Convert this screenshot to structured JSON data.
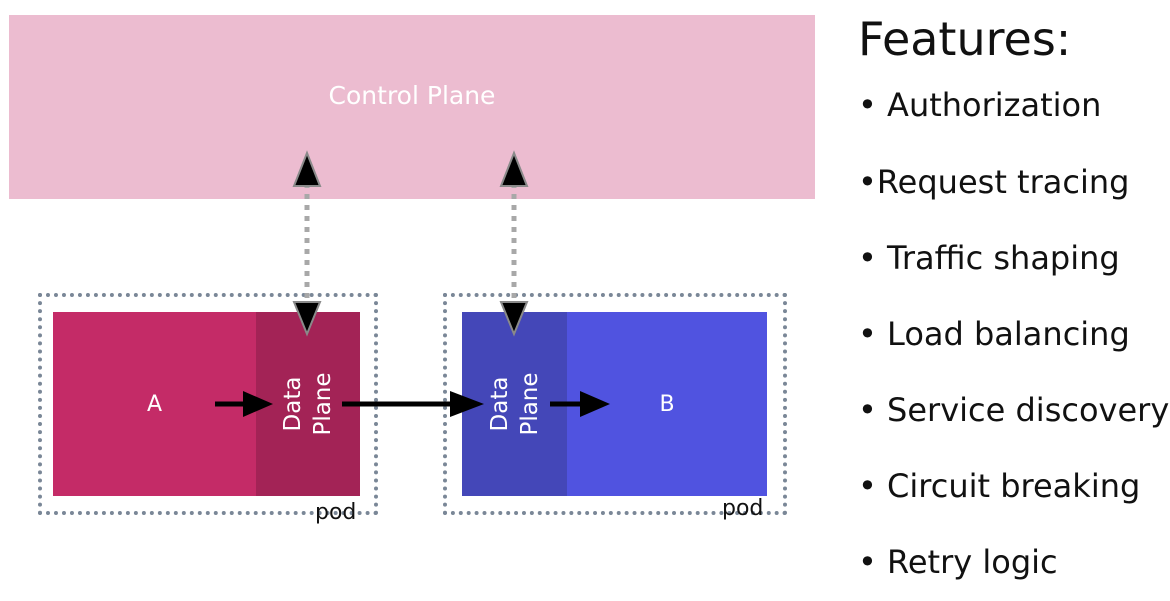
{
  "diagram": {
    "control_plane": {
      "label": "Control Plane"
    },
    "pods": [
      {
        "service_label": "A",
        "proxy_line1": "Data",
        "proxy_line2": "Plane",
        "pod_label": "pod"
      },
      {
        "service_label": "B",
        "proxy_line1": "Data",
        "proxy_line2": "Plane",
        "pod_label": "pod"
      }
    ]
  },
  "features": {
    "title": "Features:",
    "items": [
      "• Authorization",
      "•Request tracing",
      "• Traffic shaping",
      "• Load balancing",
      "• Service discovery",
      "• Circuit breaking",
      "• Retry logic"
    ]
  },
  "colors": {
    "control_plane": "#ecbcd0",
    "service_a": "#c42b67",
    "data_plane_a": "#a32356",
    "data_plane_b": "#4447b8",
    "service_b": "#5053e0",
    "pod_border": "#7a8797",
    "connector": "#a8a8a8"
  }
}
